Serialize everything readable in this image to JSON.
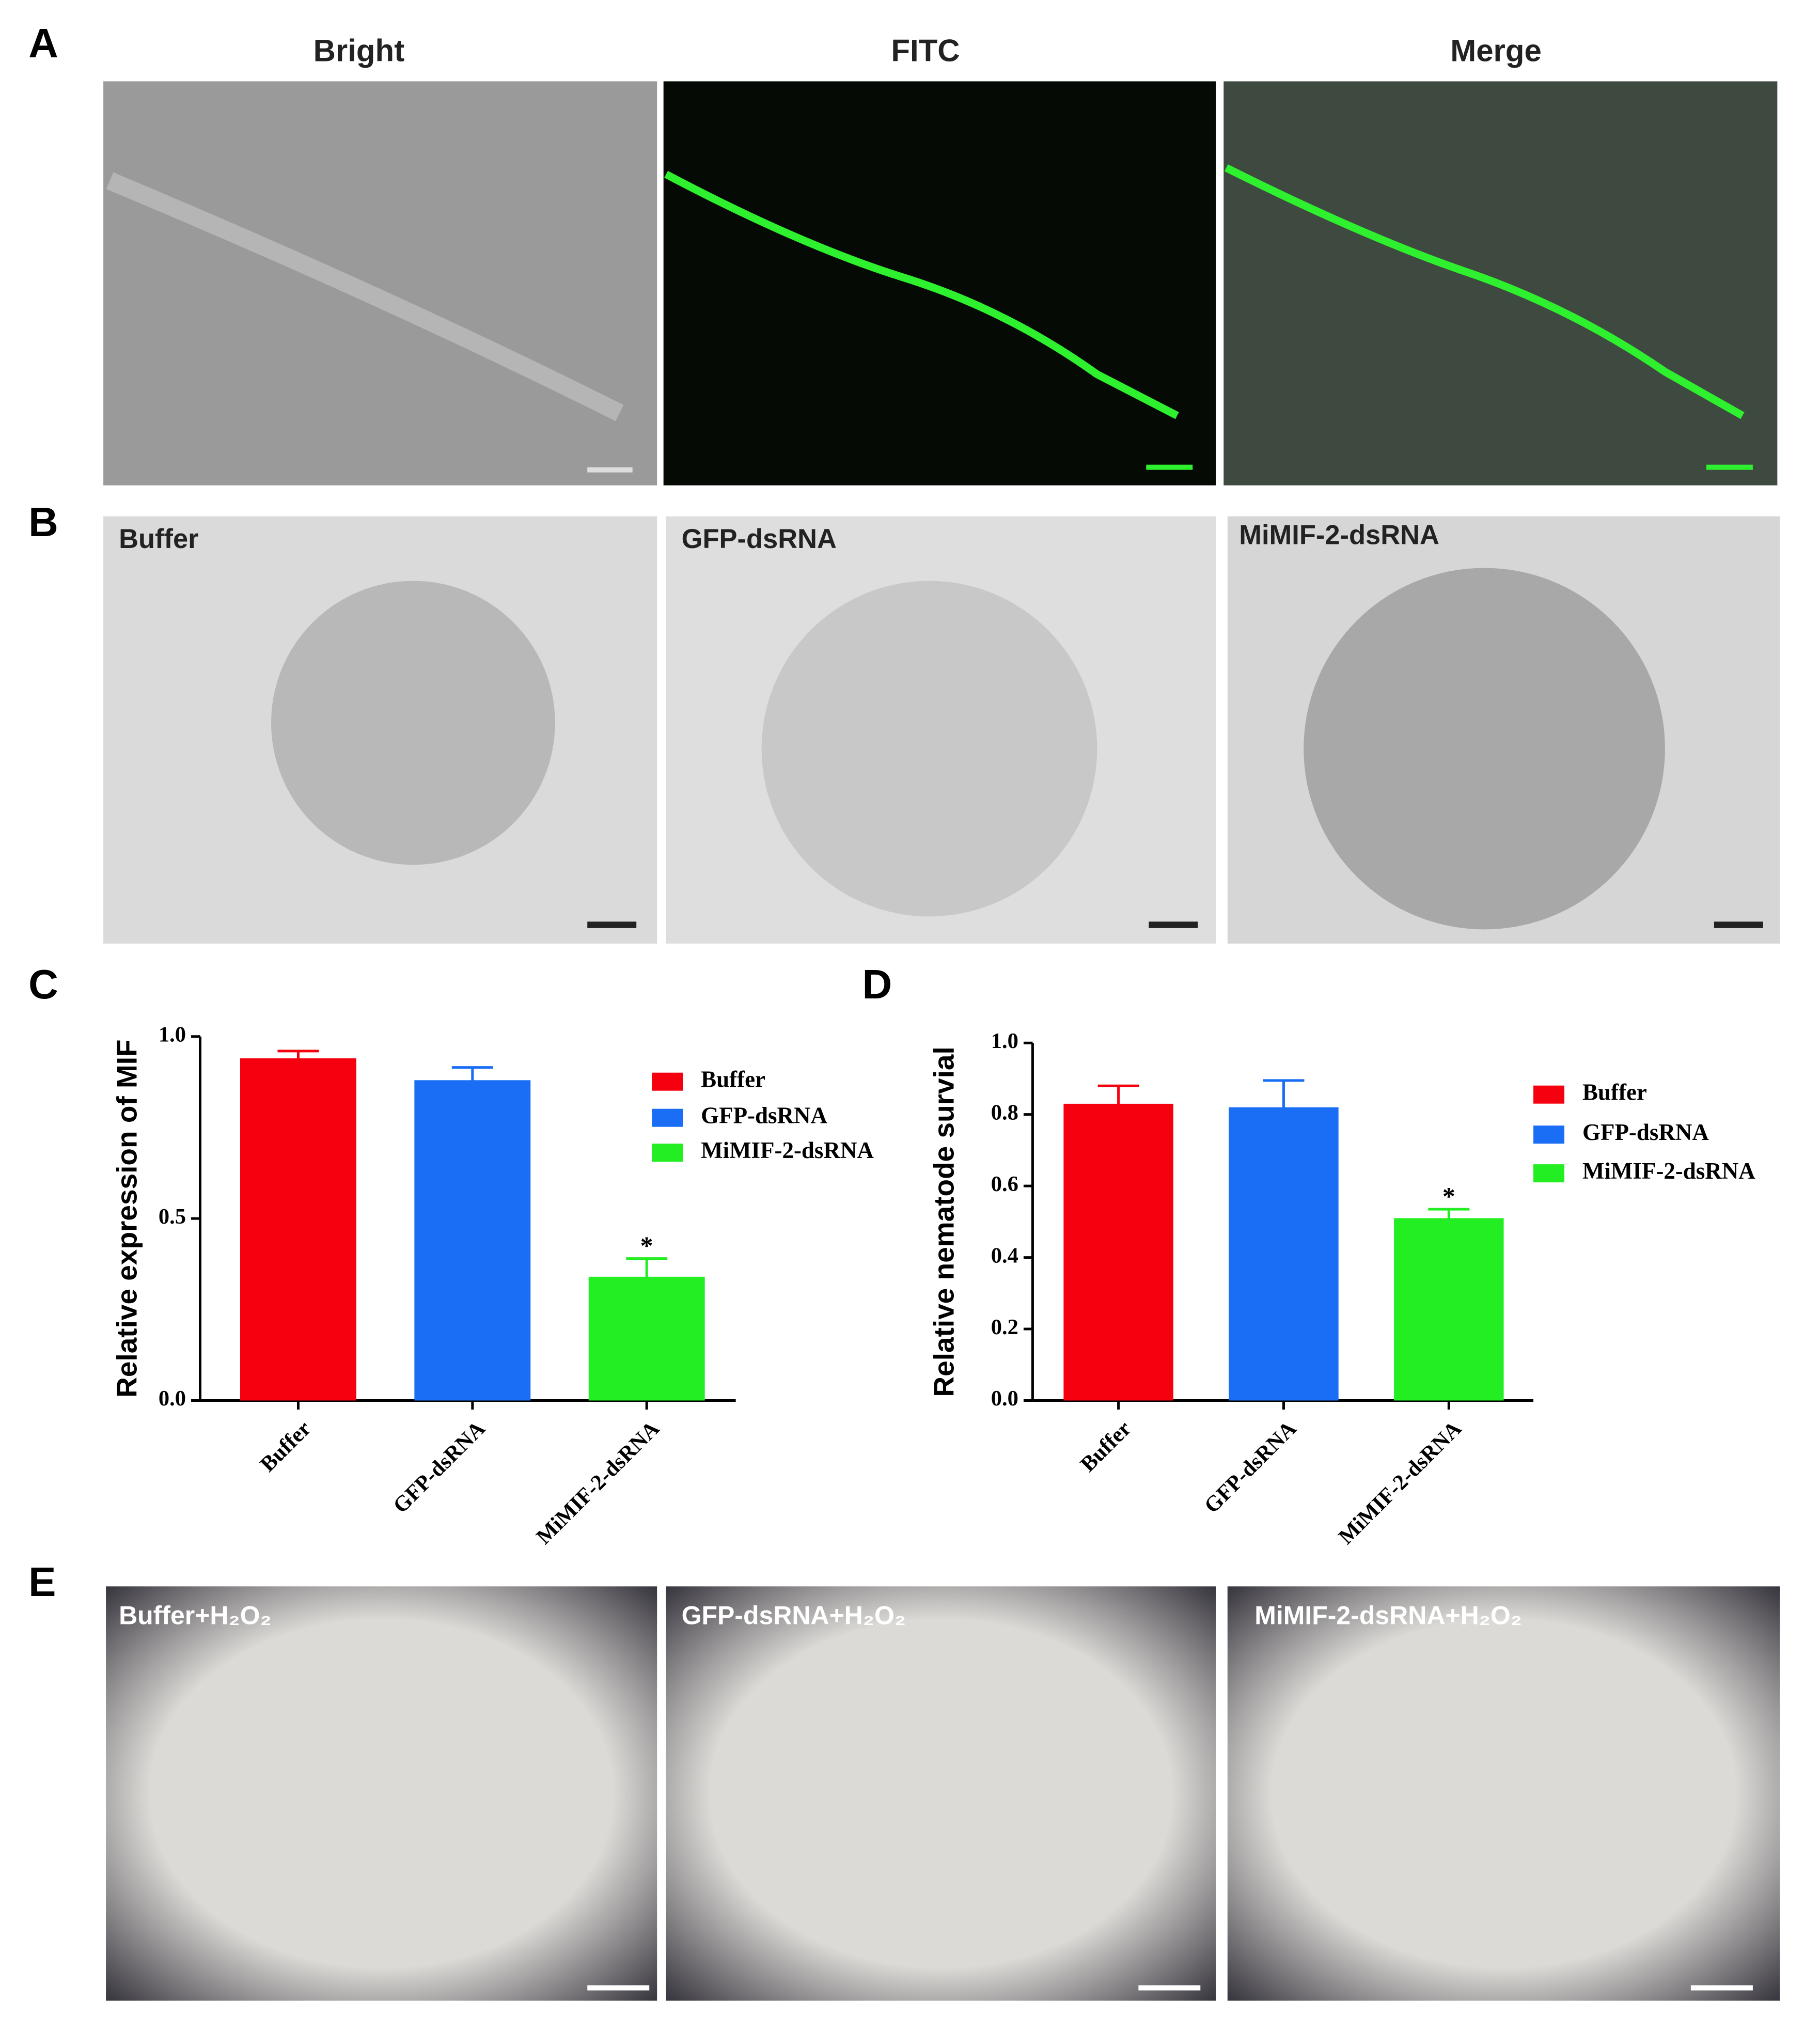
{
  "panels": {
    "letters": [
      "A",
      "B",
      "C",
      "D",
      "E"
    ],
    "a_titles": [
      "Bright",
      "FITC",
      "Merge"
    ],
    "b_labels": [
      "Buffer",
      "GFP-dsRNA",
      "MiMIF-2-dsRNA"
    ],
    "e_labels": [
      "Buffer+H₂O₂",
      "GFP-dsRNA+H₂O₂",
      "MiMIF-2-dsRNA+H₂O₂"
    ]
  },
  "chart_data": [
    {
      "type": "bar",
      "ylabel": "Relative expression of MIF",
      "categories": [
        "Buffer",
        "GFP-dsRNA",
        "MiMIF-2-dsRNA"
      ],
      "values": [
        0.94,
        0.88,
        0.34
      ],
      "errors": [
        0.02,
        0.035,
        0.05
      ],
      "colors": [
        "#f5000f",
        "#1a6ef5",
        "#22ee22"
      ],
      "annotation": "*",
      "ylim": [
        0,
        1.0
      ],
      "yticks": [
        {
          "value": 0,
          "label": "0.0"
        },
        0.5,
        {
          "value": 1,
          "label": "1.0"
        }
      ]
    },
    {
      "type": "bar",
      "ylabel": "Relative nematode survial",
      "categories": [
        "Buffer",
        "GFP-dsRNA",
        "MiMIF-2-dsRNA"
      ],
      "values": [
        0.83,
        0.82,
        0.51
      ],
      "errors": [
        0.05,
        0.075,
        0.025
      ],
      "colors": [
        "#f5000f",
        "#1a6ef5",
        "#22ee22"
      ],
      "annotation": "*",
      "ylim": [
        0,
        1.0
      ],
      "yticks": [
        {
          "value": 0,
          "label": "0.0"
        },
        0.2,
        0.4,
        0.6,
        0.8,
        {
          "value": 1,
          "label": "1.0"
        }
      ]
    }
  ]
}
